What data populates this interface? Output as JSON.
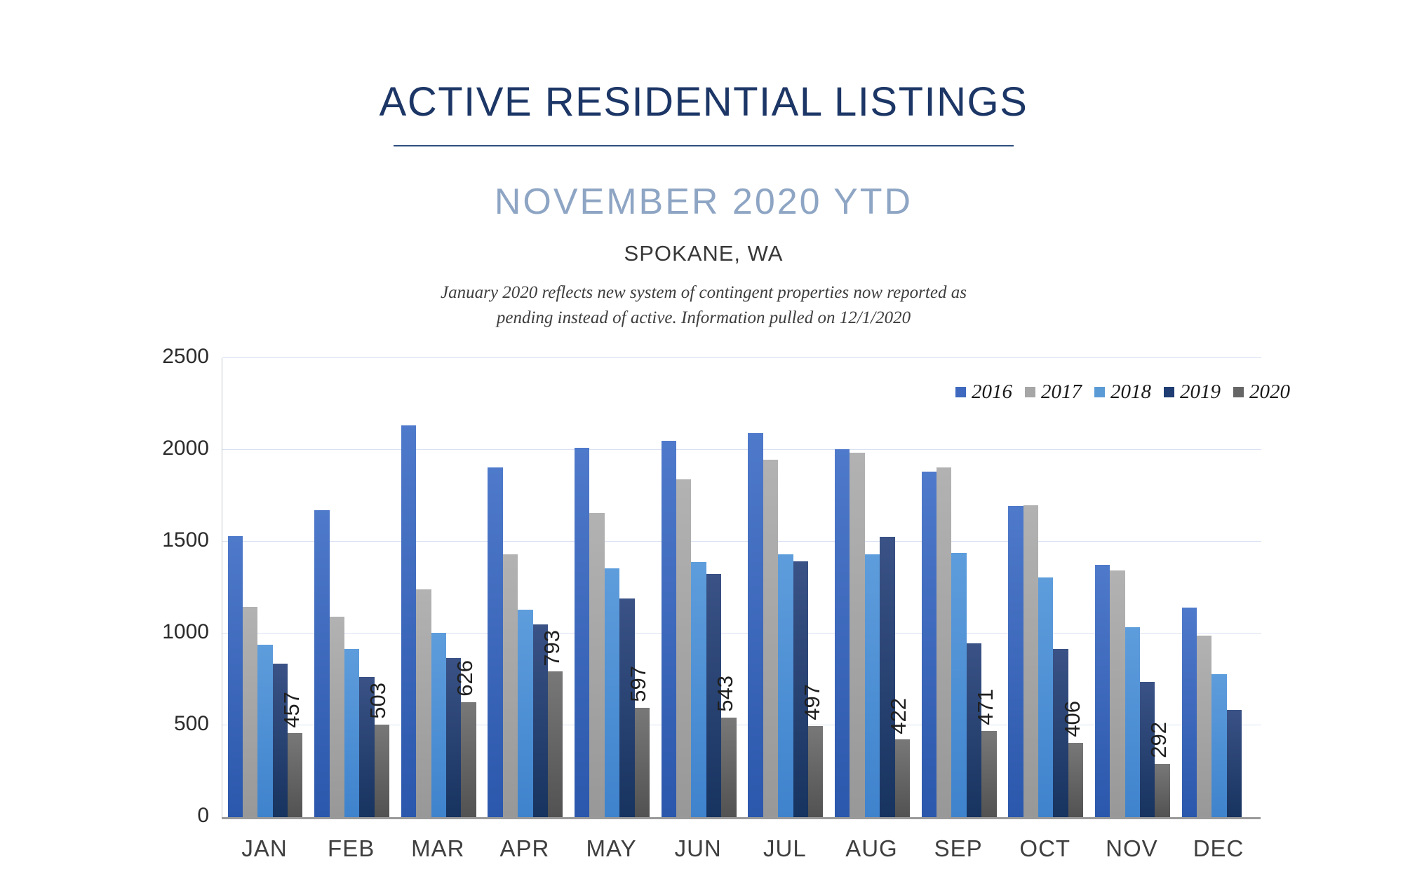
{
  "header": {
    "title": "ACTIVE RESIDENTIAL LISTINGS",
    "subtitle": "NOVEMBER 2020 YTD",
    "location": "SPOKANE, WA",
    "note_line1": "January 2020 reflects new system of contingent properties now reported as",
    "note_line2": "pending instead of active.  Information pulled on 12/1/2020"
  },
  "colors": {
    "title_navy": "#1c3666",
    "subtitle_blue": "#8ea5c4",
    "gridline": "#d9e1f2",
    "baseline": "#9a9a9a",
    "axis_text": "#3f3f3f"
  },
  "chart_data": {
    "type": "bar",
    "title": "ACTIVE RESIDENTIAL LISTINGS",
    "subtitle": "NOVEMBER 2020 YTD",
    "region": "SPOKANE, WA",
    "xlabel": "",
    "ylabel": "",
    "ylim": [
      0,
      2500
    ],
    "ytick_step": 500,
    "yticks": [
      "0",
      "500",
      "1000",
      "1500",
      "2000",
      "2500"
    ],
    "grid": "horizontal",
    "legend_position": "top-right",
    "categories": [
      "JAN",
      "FEB",
      "MAR",
      "APR",
      "MAY",
      "JUN",
      "JUL",
      "AUG",
      "SEP",
      "OCT",
      "NOV",
      "DEC"
    ],
    "series": [
      {
        "name": "2016",
        "legend_color": "#3e69be",
        "color_top": "#4f7acb",
        "color_bottom": "#2b57ac",
        "values": [
          1530,
          1670,
          2135,
          1905,
          2010,
          2050,
          2090,
          2005,
          1880,
          1695,
          1375,
          1140
        ]
      },
      {
        "name": "2017",
        "legend_color": "#a6a6a6",
        "color_top": "#b2b2b2",
        "color_bottom": "#989898",
        "values": [
          1145,
          1090,
          1240,
          1430,
          1655,
          1840,
          1945,
          1985,
          1905,
          1700,
          1345,
          990
        ]
      },
      {
        "name": "2018",
        "legend_color": "#5b9bd5",
        "color_top": "#5e9ddc",
        "color_bottom": "#3f83cd",
        "values": [
          940,
          915,
          1005,
          1130,
          1355,
          1390,
          1430,
          1430,
          1440,
          1305,
          1035,
          780
        ]
      },
      {
        "name": "2019",
        "legend_color": "#1f3d73",
        "color_top": "#3a5286",
        "color_bottom": "#17335f",
        "values": [
          835,
          765,
          865,
          1050,
          1190,
          1325,
          1395,
          1525,
          945,
          915,
          735,
          585
        ]
      },
      {
        "name": "2020",
        "legend_color": "#666666",
        "color_top": "#787878",
        "color_bottom": "#525252",
        "values": [
          457,
          503,
          626,
          793,
          597,
          543,
          497,
          422,
          471,
          406,
          292,
          null
        ]
      }
    ],
    "bar_labels_series": "2020",
    "bar_labels": [
      "457",
      "503",
      "626",
      "793",
      "597",
      "543",
      "497",
      "422",
      "471",
      "406",
      "292",
      ""
    ]
  }
}
